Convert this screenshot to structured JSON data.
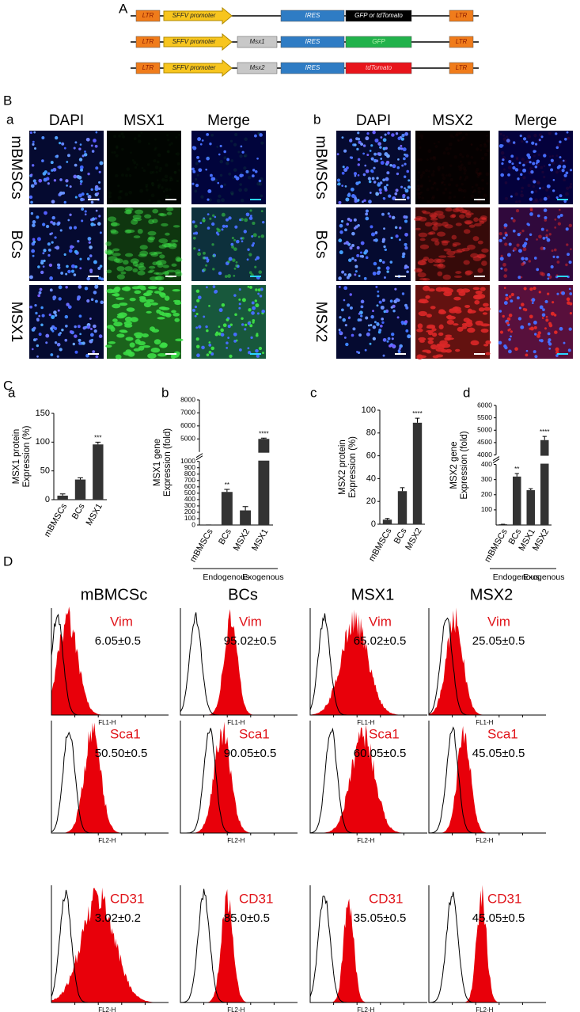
{
  "panels": {
    "A": "A",
    "B": "B",
    "C": "C",
    "D": "D"
  },
  "constructs": [
    {
      "parts": [
        {
          "text": "LTR",
          "color": "#f07c1b",
          "text_color": "#8b1a00"
        },
        {
          "text": "SFFV promoter",
          "color": "#f7c51e",
          "text_color": "#222222"
        },
        {
          "text": "IRES",
          "color": "#2f7cc4",
          "text_color": "#ffffff"
        },
        {
          "text": "GFP or tdTomato",
          "color": "#000000",
          "text_color": "#ffffff"
        },
        {
          "text": "LTR",
          "color": "#f07c1b",
          "text_color": "#8b1a00"
        }
      ]
    },
    {
      "parts": [
        {
          "text": "LTR",
          "color": "#f07c1b",
          "text_color": "#8b1a00"
        },
        {
          "text": "SFFV promoter",
          "color": "#f7c51e",
          "text_color": "#222222"
        },
        {
          "text": "Msx1",
          "color": "#c8c8c8",
          "text_color": "#222222"
        },
        {
          "text": "IRES",
          "color": "#2f7cc4",
          "text_color": "#ffffff"
        },
        {
          "text": "GFP",
          "color": "#21b24b",
          "text_color": "#b6f5b0"
        },
        {
          "text": "LTR",
          "color": "#f07c1b",
          "text_color": "#8b1a00"
        }
      ]
    },
    {
      "parts": [
        {
          "text": "LTR",
          "color": "#f07c1b",
          "text_color": "#8b1a00"
        },
        {
          "text": "SFFV promoter",
          "color": "#f7c51e",
          "text_color": "#222222"
        },
        {
          "text": "Msx2",
          "color": "#c8c8c8",
          "text_color": "#222222"
        },
        {
          "text": "IRES",
          "color": "#2f7cc4",
          "text_color": "#ffffff"
        },
        {
          "text": "tdTomato",
          "color": "#e8141b",
          "text_color": "#ffd0d0"
        },
        {
          "text": "LTR",
          "color": "#f07c1b",
          "text_color": "#8b1a00"
        }
      ]
    }
  ],
  "microscopy": [
    {
      "label": "a",
      "columns": [
        "DAPI",
        "MSX1",
        "Merge"
      ],
      "rows": [
        "mBMSCs",
        "BCs",
        "MSX1"
      ]
    },
    {
      "label": "b",
      "columns": [
        "DAPI",
        "MSX2",
        "Merge"
      ],
      "rows": [
        "mBMSCs",
        "BCs",
        "MSX2"
      ]
    }
  ],
  "chart_data": [
    {
      "type": "bar",
      "label": "a",
      "ylabel": [
        "MSX1 protein",
        "Expression (%)"
      ],
      "categories": [
        "mBMSCs",
        "BCs",
        "MSX1"
      ],
      "values": [
        7,
        35,
        96
      ],
      "errors": [
        3,
        3,
        4
      ],
      "significance": [
        null,
        null,
        "***"
      ],
      "color": "#333333",
      "ylim": [
        0,
        150
      ],
      "yticks": [
        0,
        50,
        100,
        150
      ]
    },
    {
      "type": "bar",
      "label": "b",
      "ylabel": [
        "MSX1 gene",
        "Expression (fold)"
      ],
      "categories": [
        "mBMSCs",
        "BCs",
        "MSX2",
        "MSX1"
      ],
      "values": [
        1,
        520,
        230,
        5000
      ],
      "errors": [
        0,
        40,
        60,
        60
      ],
      "significance": [
        null,
        "**",
        null,
        "****"
      ],
      "color": "#333333",
      "segments": [
        {
          "ylim": [
            0,
            1000
          ],
          "yticks": [
            0,
            100,
            200,
            300,
            400,
            500,
            600,
            700,
            800,
            900,
            1000
          ]
        },
        {
          "ylim": [
            4000,
            8000
          ],
          "yticks": [
            5000,
            6000,
            7000,
            8000
          ]
        }
      ],
      "groups": [
        "Endogenous",
        "Exogenous"
      ]
    },
    {
      "type": "bar",
      "label": "c",
      "ylabel": [
        "MSX2 protein",
        "Expression (%)"
      ],
      "categories": [
        "mBMSCs",
        "BCs",
        "MSX2"
      ],
      "values": [
        4,
        29,
        89
      ],
      "errors": [
        1,
        3,
        4
      ],
      "significance": [
        null,
        null,
        "****"
      ],
      "color": "#333333",
      "ylim": [
        0,
        100
      ],
      "yticks": [
        0,
        20,
        40,
        60,
        80,
        100
      ]
    },
    {
      "type": "bar",
      "label": "d",
      "ylabel": [
        "MSX2 gene",
        "Expression (fold)"
      ],
      "categories": [
        "mBMSCs",
        "BCs",
        "MSX1",
        "MSX2"
      ],
      "values": [
        5,
        320,
        230,
        4600
      ],
      "errors": [
        0,
        20,
        10,
        150
      ],
      "significance": [
        null,
        "**",
        null,
        "****"
      ],
      "color": "#333333",
      "segments": [
        {
          "ylim": [
            0,
            400
          ],
          "yticks": [
            100,
            200,
            300,
            400
          ]
        },
        {
          "ylim": [
            4000,
            6000
          ],
          "yticks": [
            4000,
            4500,
            5000,
            5500,
            6000
          ]
        }
      ],
      "groups": [
        "Endogenous",
        "Exogenous"
      ]
    }
  ],
  "flow": {
    "columns": [
      "mBMCSc",
      "BCs",
      "MSX1",
      "MSX2"
    ],
    "rows": [
      {
        "marker": "Vim",
        "axis_label": "FL1-H",
        "values": [
          "6.05±0.5",
          "95.02±0.5",
          "65.02±0.5",
          "25.05±0.5"
        ]
      },
      {
        "marker": "Sca1",
        "axis_label": "FL2-H",
        "values": [
          "50.50±0.5",
          "90.05±0.5",
          "60.05±0.5",
          "45.05±0.5"
        ]
      },
      {
        "marker": "CD31",
        "axis_label": "FL2-H",
        "values": [
          "3.02±0.2",
          "85.0±0.5",
          "35.05±0.5",
          "45.05±0.5"
        ]
      }
    ]
  }
}
